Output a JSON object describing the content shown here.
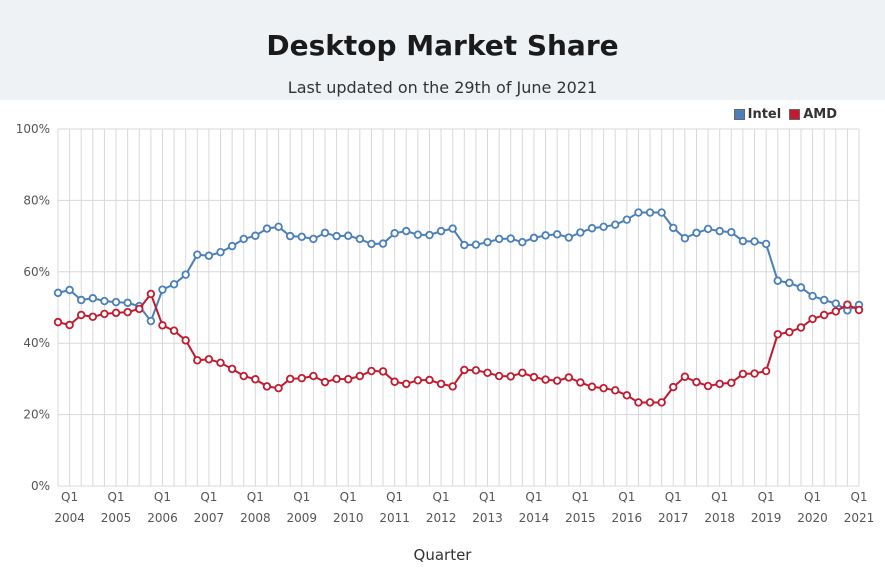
{
  "header": {
    "title": "Desktop Market Share",
    "subtitle": "Last updated on the 29th of June 2021"
  },
  "colors": {
    "intel": "#4a7fb9",
    "amd": "#c21a2f",
    "grid": "#d8d8d8",
    "header_bg": "#eef2f5"
  },
  "chart_data": {
    "type": "line",
    "xlabel": "Quarter",
    "ylabel": "",
    "ylim": [
      0,
      100
    ],
    "yticks": [
      "0%",
      "20%",
      "40%",
      "60%",
      "80%",
      "100%"
    ],
    "grid": true,
    "legend_position": "top-right",
    "x_start": "2003 Q4",
    "x_end": "2021 Q1",
    "x_tick_labels": [
      {
        "quarter": "Q1",
        "year": "2004"
      },
      {
        "quarter": "Q1",
        "year": "2005"
      },
      {
        "quarter": "Q1",
        "year": "2006"
      },
      {
        "quarter": "Q1",
        "year": "2007"
      },
      {
        "quarter": "Q1",
        "year": "2008"
      },
      {
        "quarter": "Q1",
        "year": "2009"
      },
      {
        "quarter": "Q1",
        "year": "2010"
      },
      {
        "quarter": "Q1",
        "year": "2011"
      },
      {
        "quarter": "Q1",
        "year": "2012"
      },
      {
        "quarter": "Q1",
        "year": "2013"
      },
      {
        "quarter": "Q1",
        "year": "2014"
      },
      {
        "quarter": "Q1",
        "year": "2015"
      },
      {
        "quarter": "Q1",
        "year": "2016"
      },
      {
        "quarter": "Q1",
        "year": "2017"
      },
      {
        "quarter": "Q1",
        "year": "2018"
      },
      {
        "quarter": "Q1",
        "year": "2019"
      },
      {
        "quarter": "Q1",
        "year": "2020"
      },
      {
        "quarter": "Q1",
        "year": "2021"
      }
    ],
    "series": [
      {
        "name": "Intel",
        "values": [
          54.1,
          54.9,
          52.1,
          52.6,
          51.8,
          51.5,
          51.3,
          50.4,
          46.2,
          55.0,
          56.5,
          59.2,
          64.8,
          64.5,
          65.5,
          67.2,
          69.2,
          70.1,
          72.1,
          72.6,
          70.0,
          69.8,
          69.2,
          70.9,
          70.0,
          70.1,
          69.2,
          67.8,
          67.9,
          70.8,
          71.4,
          70.4,
          70.3,
          71.4,
          72.1,
          67.5,
          67.6,
          68.3,
          69.2,
          69.3,
          68.3,
          69.5,
          70.2,
          70.5,
          69.6,
          71.0,
          72.2,
          72.6,
          73.2,
          74.6,
          76.6,
          76.6,
          76.6,
          72.3,
          69.4,
          70.9,
          72.0,
          71.4,
          71.1,
          68.6,
          68.5,
          67.8,
          57.5,
          56.9,
          55.6,
          53.2,
          52.1,
          51.1,
          49.2,
          50.7
        ]
      },
      {
        "name": "AMD",
        "values": [
          45.9,
          45.1,
          47.9,
          47.4,
          48.2,
          48.5,
          48.7,
          49.6,
          53.8,
          45.0,
          43.5,
          40.8,
          35.2,
          35.5,
          34.5,
          32.8,
          30.8,
          29.9,
          27.9,
          27.4,
          30.0,
          30.2,
          30.8,
          29.1,
          30.0,
          29.9,
          30.8,
          32.2,
          32.1,
          29.2,
          28.6,
          29.6,
          29.7,
          28.6,
          27.9,
          32.5,
          32.4,
          31.7,
          30.8,
          30.7,
          31.7,
          30.5,
          29.8,
          29.5,
          30.4,
          29.0,
          27.8,
          27.4,
          26.8,
          25.4,
          23.4,
          23.4,
          23.4,
          27.7,
          30.6,
          29.1,
          28.0,
          28.6,
          28.9,
          31.4,
          31.5,
          32.2,
          42.5,
          43.1,
          44.4,
          46.8,
          47.9,
          48.9,
          50.8,
          49.3
        ]
      }
    ]
  }
}
